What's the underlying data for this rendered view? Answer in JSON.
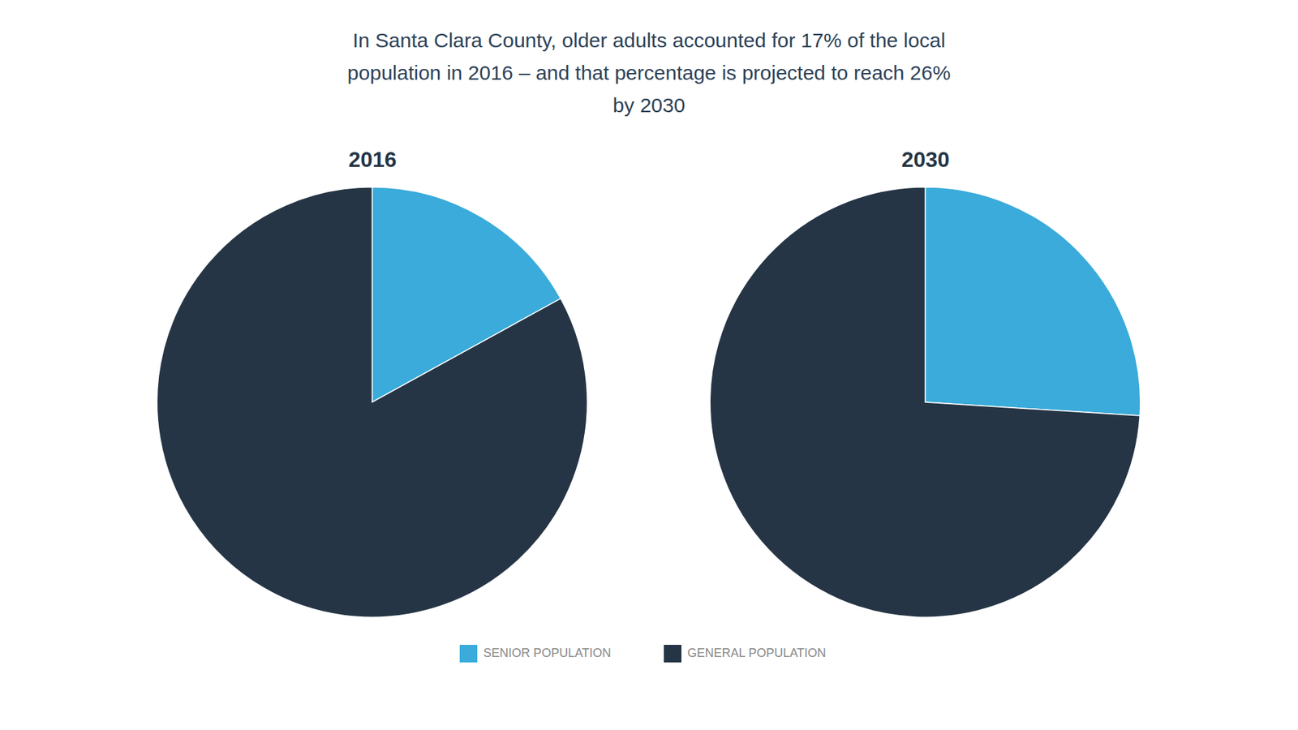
{
  "chart_data": {
    "type": "pie",
    "title": "In Santa Clara County, older adults accounted for 17% of the local\npopulation in 2016 – and that percentage is projected to reach 26%\nby 2030",
    "categories": [
      "SENIOR POPULATION",
      "GENERAL POPULATION"
    ],
    "colors": [
      "#3aabda",
      "#253545"
    ],
    "series": [
      {
        "name": "2016",
        "values": [
          17,
          83
        ]
      },
      {
        "name": "2030",
        "values": [
          26,
          74
        ]
      }
    ],
    "legend": "bottom"
  }
}
